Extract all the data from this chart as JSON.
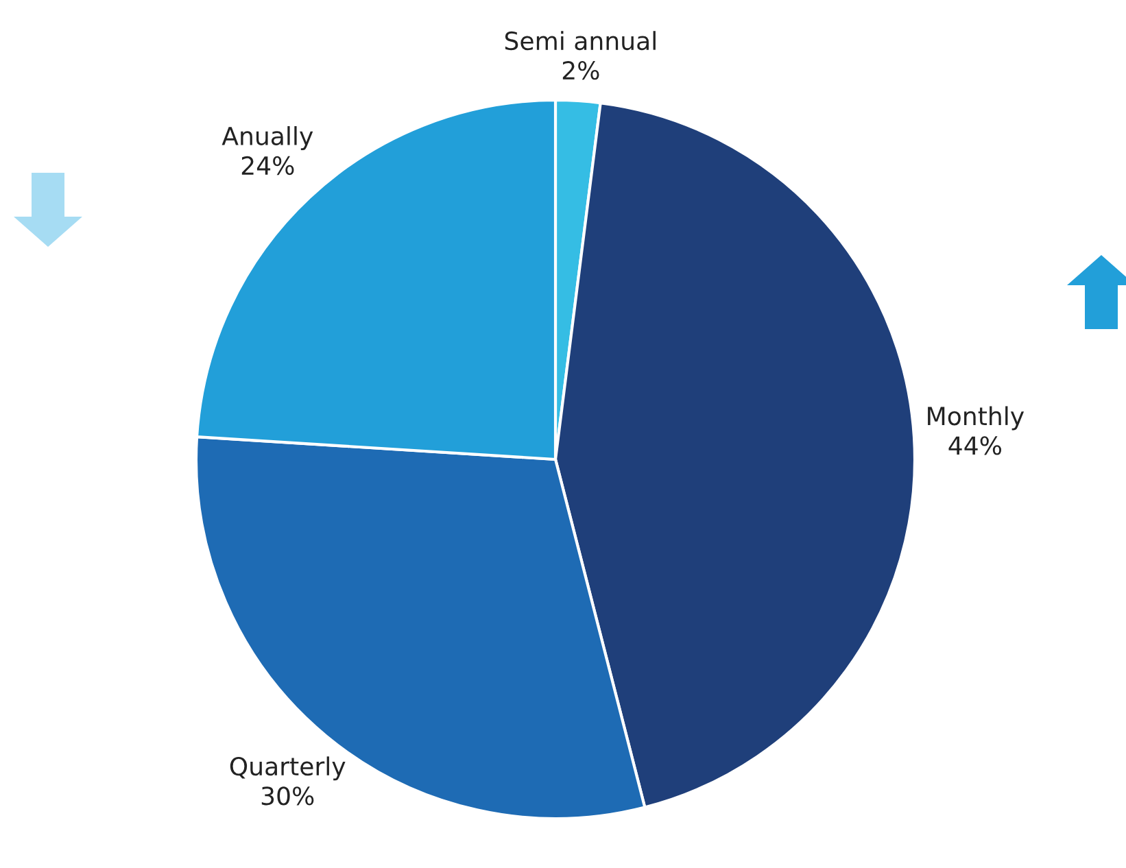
{
  "chart_data": {
    "type": "pie",
    "categories": [
      "Semi annual",
      "Monthly",
      "Quarterly",
      "Anually"
    ],
    "values": [
      2,
      44,
      30,
      24
    ],
    "colors": [
      "#35bde4",
      "#1f3f7a",
      "#1e6bb4",
      "#229fd9"
    ],
    "value_labels": [
      "2%",
      "44%",
      "30%",
      "24%"
    ]
  }
}
